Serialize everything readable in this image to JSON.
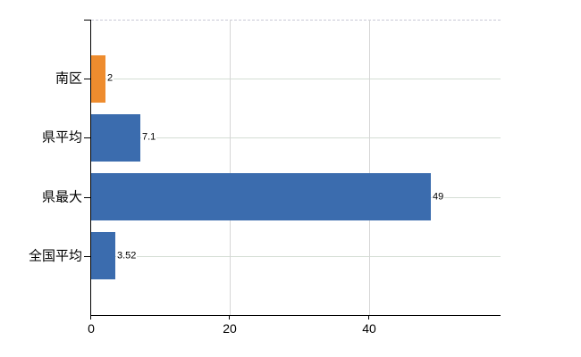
{
  "chart_data": {
    "type": "bar",
    "orientation": "horizontal",
    "title": "",
    "categories": [
      "南区",
      "県平均",
      "県最大",
      "全国平均"
    ],
    "values": [
      2,
      7.1,
      49,
      3.52
    ],
    "value_labels": [
      "2",
      "7.1",
      "49",
      "3.52"
    ],
    "bar_colors": [
      "#ee8c2e",
      "#3b6cae",
      "#3b6cae",
      "#3b6cae"
    ],
    "x_ticks": [
      0,
      20,
      40
    ],
    "x_tick_labels": [
      "0",
      "20",
      "40"
    ],
    "xlim": [
      0,
      59
    ],
    "grid": true,
    "legend_position": "none"
  },
  "colors": {
    "axis": "#000000",
    "grid_horizontal": "#d4ddd4",
    "grid_vertical": "#d6d6d6",
    "grid_top_dashed": "#c9c9d6",
    "background": "#ffffff",
    "text": "#000000"
  }
}
